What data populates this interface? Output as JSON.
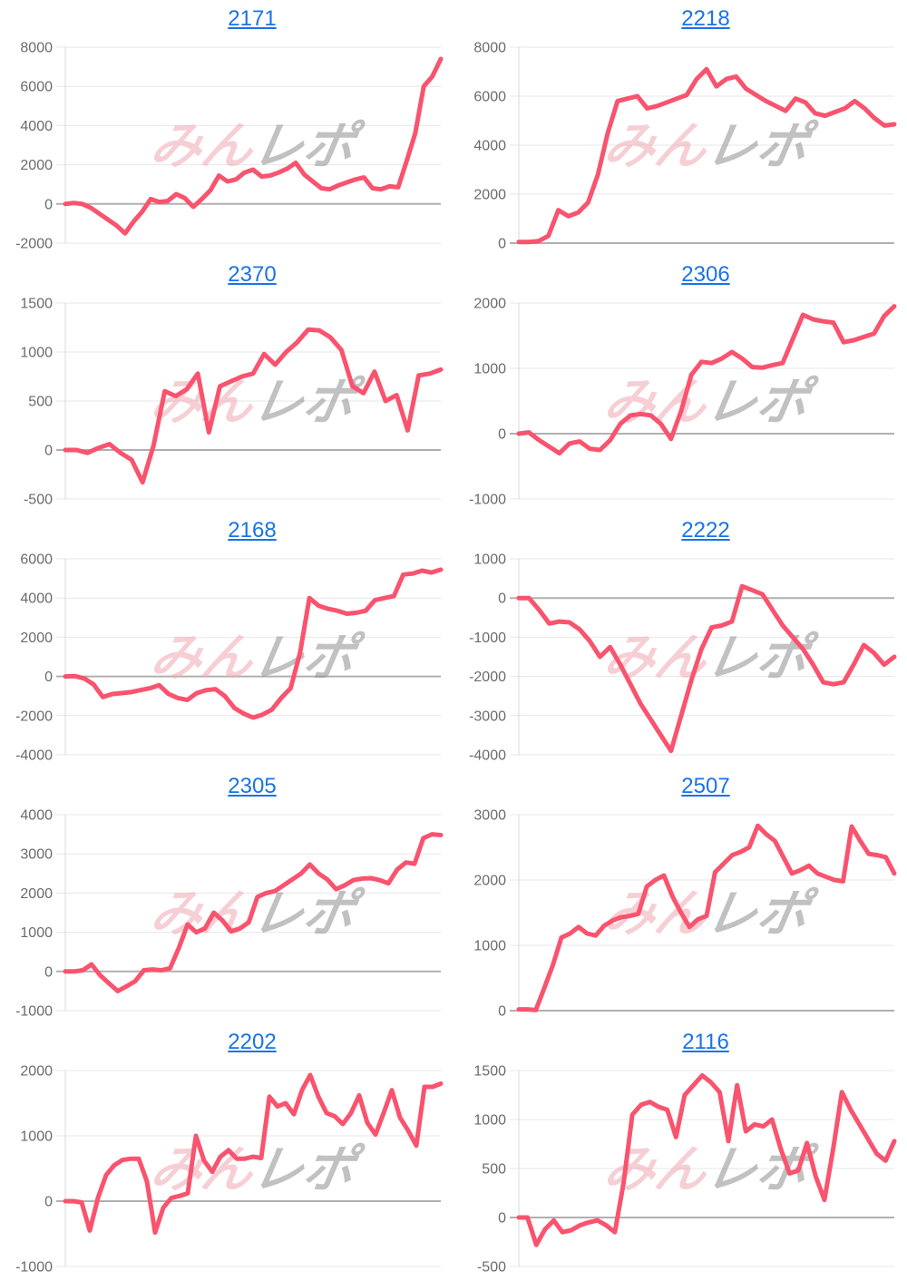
{
  "style": {
    "line_color": "#f9536e",
    "title_color": "#1a73e8",
    "axis_label_color": "#6b6b6b",
    "grid_color": "#e7e7e7",
    "zero_line_color": "#b0b0b0",
    "axis_line_color": "#d8d8d8",
    "background": "#ffffff"
  },
  "watermark": {
    "pink_text": "みん",
    "gray_text": "レポ",
    "pink_color": "#f0a9b4",
    "gray_color": "#8f8f8f"
  },
  "chart_data": [
    {
      "type": "line",
      "title": "2171",
      "xlabel": "",
      "ylabel": "",
      "ylim": [
        -2000,
        8000
      ],
      "yticks": [
        8000,
        6000,
        4000,
        2000,
        0,
        -2000
      ],
      "grid": true,
      "values": [
        0,
        50,
        0,
        -200,
        -500,
        -800,
        -1100,
        -1500,
        -900,
        -400,
        250,
        100,
        150,
        500,
        300,
        -150,
        250,
        700,
        1450,
        1150,
        1250,
        1600,
        1750,
        1400,
        1450,
        1600,
        1800,
        2100,
        1500,
        1150,
        800,
        750,
        950,
        1100,
        1250,
        1350,
        800,
        750,
        900,
        850,
        2200,
        3600,
        6000,
        6500,
        7400
      ]
    },
    {
      "type": "line",
      "title": "2218",
      "xlabel": "",
      "ylabel": "",
      "ylim": [
        0,
        8000
      ],
      "yticks": [
        8000,
        6000,
        4000,
        2000,
        0
      ],
      "grid": true,
      "values": [
        50,
        50,
        80,
        300,
        1350,
        1100,
        1250,
        1650,
        2800,
        4500,
        5800,
        5900,
        6000,
        5500,
        5600,
        5750,
        5900,
        6050,
        6700,
        7100,
        6400,
        6700,
        6800,
        6300,
        6050,
        5800,
        5600,
        5400,
        5900,
        5750,
        5300,
        5200,
        5350,
        5500,
        5800,
        5500,
        5100,
        4800,
        4850
      ]
    },
    {
      "type": "line",
      "title": "2370",
      "xlabel": "",
      "ylabel": "",
      "ylim": [
        -500,
        1500
      ],
      "yticks": [
        1500,
        1000,
        500,
        0,
        -500
      ],
      "grid": true,
      "values": [
        0,
        0,
        -30,
        20,
        60,
        -30,
        -100,
        -330,
        50,
        600,
        550,
        620,
        780,
        180,
        650,
        700,
        750,
        780,
        980,
        870,
        1000,
        1100,
        1230,
        1220,
        1150,
        1020,
        650,
        580,
        800,
        500,
        560,
        200,
        760,
        780,
        820
      ]
    },
    {
      "type": "line",
      "title": "2306",
      "xlabel": "",
      "ylabel": "",
      "ylim": [
        -1000,
        2000
      ],
      "yticks": [
        2000,
        1000,
        0,
        -1000
      ],
      "grid": true,
      "values": [
        0,
        20,
        -100,
        -200,
        -300,
        -150,
        -120,
        -230,
        -250,
        -100,
        150,
        280,
        300,
        280,
        150,
        -80,
        350,
        900,
        1100,
        1080,
        1150,
        1250,
        1150,
        1020,
        1010,
        1050,
        1080,
        1450,
        1820,
        1750,
        1720,
        1700,
        1400,
        1430,
        1480,
        1530,
        1800,
        1950
      ]
    },
    {
      "type": "line",
      "title": "2168",
      "xlabel": "",
      "ylabel": "",
      "ylim": [
        -4000,
        6000
      ],
      "yticks": [
        6000,
        4000,
        2000,
        0,
        -2000,
        -4000
      ],
      "grid": true,
      "values": [
        0,
        20,
        -100,
        -400,
        -1050,
        -900,
        -850,
        -800,
        -700,
        -600,
        -450,
        -900,
        -1100,
        -1200,
        -850,
        -700,
        -650,
        -1000,
        -1600,
        -1900,
        -2100,
        -1950,
        -1700,
        -1100,
        -600,
        1200,
        4000,
        3600,
        3450,
        3350,
        3200,
        3250,
        3350,
        3900,
        4000,
        4100,
        5200,
        5250,
        5400,
        5300,
        5450
      ]
    },
    {
      "type": "line",
      "title": "2222",
      "xlabel": "",
      "ylabel": "",
      "ylim": [
        -4000,
        1000
      ],
      "yticks": [
        1000,
        0,
        -1000,
        -2000,
        -3000,
        -4000
      ],
      "grid": true,
      "values": [
        0,
        0,
        -300,
        -650,
        -600,
        -620,
        -800,
        -1100,
        -1500,
        -1250,
        -1700,
        -2200,
        -2700,
        -3100,
        -3500,
        -3900,
        -3000,
        -2100,
        -1300,
        -750,
        -700,
        -600,
        300,
        200,
        100,
        -300,
        -700,
        -1000,
        -1300,
        -1700,
        -2150,
        -2200,
        -2150,
        -1700,
        -1200,
        -1400,
        -1700,
        -1500
      ]
    },
    {
      "type": "line",
      "title": "2305",
      "xlabel": "",
      "ylabel": "",
      "ylim": [
        -1000,
        4000
      ],
      "yticks": [
        4000,
        3000,
        2000,
        1000,
        0,
        -1000
      ],
      "grid": true,
      "values": [
        0,
        0,
        30,
        180,
        -100,
        -300,
        -500,
        -380,
        -250,
        30,
        50,
        30,
        80,
        600,
        1200,
        1000,
        1100,
        1500,
        1300,
        1020,
        1100,
        1250,
        1900,
        2000,
        2050,
        2200,
        2350,
        2500,
        2730,
        2500,
        2350,
        2100,
        2200,
        2330,
        2370,
        2380,
        2330,
        2250,
        2600,
        2780,
        2750,
        3400,
        3500,
        3480
      ]
    },
    {
      "type": "line",
      "title": "2507",
      "xlabel": "",
      "ylabel": "",
      "ylim": [
        0,
        3000
      ],
      "yticks": [
        3000,
        2000,
        1000,
        0
      ],
      "grid": true,
      "values": [
        20,
        20,
        10,
        350,
        700,
        1120,
        1180,
        1280,
        1180,
        1150,
        1300,
        1380,
        1430,
        1450,
        1480,
        1900,
        2000,
        2070,
        1750,
        1500,
        1280,
        1400,
        1450,
        2120,
        2250,
        2380,
        2430,
        2500,
        2830,
        2700,
        2600,
        2350,
        2100,
        2150,
        2220,
        2100,
        2050,
        2000,
        1980,
        2820,
        2600,
        2400,
        2380,
        2350,
        2100
      ]
    },
    {
      "type": "line",
      "title": "2202",
      "xlabel": "",
      "ylabel": "",
      "ylim": [
        -1000,
        2000
      ],
      "yticks": [
        2000,
        1000,
        0,
        -1000
      ],
      "grid": true,
      "values": [
        0,
        0,
        -20,
        -450,
        50,
        400,
        550,
        630,
        650,
        650,
        300,
        -480,
        -100,
        50,
        80,
        120,
        1000,
        620,
        450,
        680,
        780,
        650,
        650,
        680,
        660,
        1600,
        1450,
        1500,
        1330,
        1700,
        1930,
        1600,
        1350,
        1300,
        1180,
        1350,
        1620,
        1200,
        1020,
        1350,
        1700,
        1280,
        1080,
        850,
        1750,
        1750,
        1800
      ]
    },
    {
      "type": "line",
      "title": "2116",
      "xlabel": "",
      "ylabel": "",
      "ylim": [
        -500,
        1500
      ],
      "yticks": [
        1500,
        1000,
        500,
        0,
        -500
      ],
      "grid": true,
      "values": [
        0,
        0,
        -280,
        -120,
        -30,
        -150,
        -130,
        -80,
        -50,
        -30,
        -80,
        -150,
        350,
        1050,
        1150,
        1180,
        1130,
        1100,
        820,
        1250,
        1350,
        1450,
        1380,
        1280,
        780,
        1350,
        880,
        950,
        930,
        1000,
        700,
        450,
        480,
        760,
        420,
        180,
        700,
        1280,
        1100,
        950,
        800,
        650,
        580,
        780
      ]
    }
  ]
}
